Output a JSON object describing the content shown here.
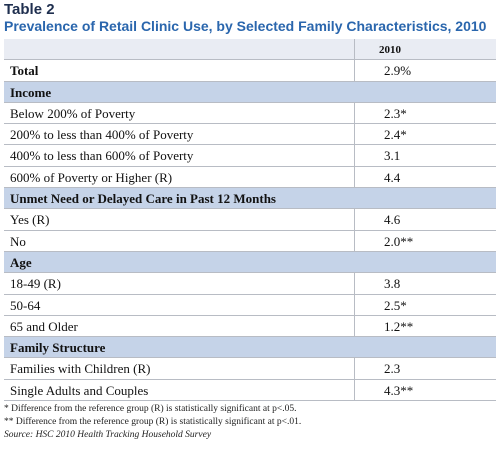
{
  "header": {
    "label": "Table 2",
    "title": "Prevalence of Retail Clinic Use, by Selected Family Characteristics, 2010"
  },
  "table": {
    "column": "2010",
    "rows": [
      {
        "label": "Total",
        "value": "2.9%",
        "bold": true
      },
      {
        "section": "Income"
      },
      {
        "label": "Below 200% of Poverty",
        "value": "2.3*"
      },
      {
        "label": "200% to less than 400% of Poverty",
        "value": "2.4*"
      },
      {
        "label": "400% to less than 600% of Poverty",
        "value": "3.1"
      },
      {
        "label": "600% of Poverty or Higher (R)",
        "value": "4.4"
      },
      {
        "section": "Unmet Need or Delayed Care in Past 12 Months"
      },
      {
        "label": "Yes (R)",
        "value": "4.6"
      },
      {
        "label": "No",
        "value": "2.0**"
      },
      {
        "section": "Age"
      },
      {
        "label": "18-49 (R)",
        "value": "3.8"
      },
      {
        "label": "50-64",
        "value": "2.5*"
      },
      {
        "label": "65 and Older",
        "value": "1.2**"
      },
      {
        "section": "Family Structure"
      },
      {
        "label": "Families with Children (R)",
        "value": "2.3"
      },
      {
        "label": "Single Adults and Couples",
        "value": "4.3**"
      }
    ]
  },
  "footnotes": [
    "* Difference from the reference group (R) is statistically significant at p<.05.",
    "** Difference from the reference group (R) is statistically significant at p<.01.",
    "Source: HSC 2010 Health Tracking Household Survey"
  ]
}
